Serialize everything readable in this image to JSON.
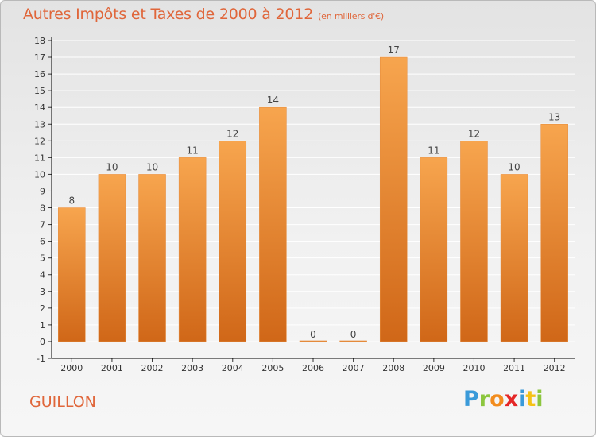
{
  "header": {
    "title": "Autres Impôts et Taxes de 2000 à 2012",
    "subtitle": "(en milliers d'€)"
  },
  "footer": {
    "commune": "GUILLON",
    "logo_text": "Proxiti"
  },
  "colors": {
    "title": "#e0663a",
    "bar_top": "#f7a54e",
    "bar_bottom": "#d06718",
    "axis": "#000000",
    "gridline": "#ffffff"
  },
  "chart_data": {
    "type": "bar",
    "categories": [
      "2000",
      "2001",
      "2002",
      "2003",
      "2004",
      "2005",
      "2006",
      "2007",
      "2008",
      "2009",
      "2010",
      "2011",
      "2012"
    ],
    "values": [
      8,
      10,
      10,
      11,
      12,
      14,
      0,
      0,
      17,
      11,
      12,
      10,
      13
    ],
    "data_labels": [
      "8",
      "10",
      "10",
      "11",
      "12",
      "14",
      "0",
      "0",
      "17",
      "11",
      "12",
      "10",
      "13"
    ],
    "yticks": [
      -1,
      0,
      1,
      2,
      3,
      4,
      5,
      6,
      7,
      8,
      9,
      10,
      11,
      12,
      13,
      14,
      15,
      16,
      17,
      18
    ],
    "ylim": [
      -1,
      18
    ],
    "grid": true
  }
}
